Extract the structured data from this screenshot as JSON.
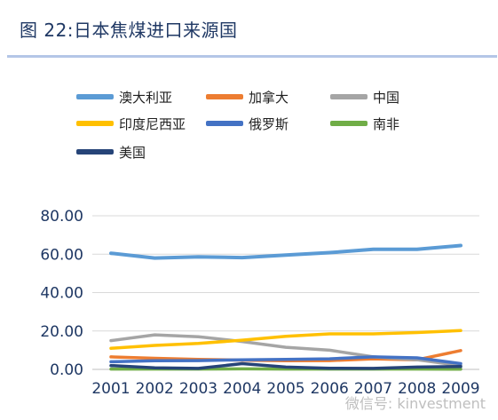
{
  "title": "图 22:日本焦煤进口来源国",
  "watermark": "微信号: kinvestment",
  "chart_data": {
    "type": "line",
    "x": [
      "2001",
      "2002",
      "2003",
      "2004",
      "2005",
      "2006",
      "2007",
      "2008",
      "2009"
    ],
    "ylim": [
      0,
      80
    ],
    "yticks": [
      "0.00",
      "20.00",
      "40.00",
      "60.00",
      "80.00"
    ],
    "grid": true,
    "legend_position": "top",
    "series": [
      {
        "name": "澳大利亚",
        "color": "#5b9bd5",
        "values": [
          60.5,
          58.0,
          58.6,
          58.2,
          59.5,
          60.8,
          62.5,
          62.5,
          64.5
        ]
      },
      {
        "name": "加拿大",
        "color": "#ed7d31",
        "values": [
          6.5,
          5.8,
          5.2,
          4.8,
          4.5,
          4.6,
          5.5,
          5.0,
          9.8
        ]
      },
      {
        "name": "中国",
        "color": "#a5a5a5",
        "values": [
          15.0,
          18.0,
          17.0,
          14.5,
          11.5,
          10.0,
          6.5,
          5.0,
          2.0
        ]
      },
      {
        "name": "印度尼西亚",
        "color": "#ffc000",
        "values": [
          11.0,
          12.5,
          13.5,
          15.2,
          17.2,
          18.5,
          18.5,
          19.2,
          20.2
        ]
      },
      {
        "name": "俄罗斯",
        "color": "#4472c4",
        "values": [
          4.0,
          4.5,
          4.6,
          5.0,
          5.2,
          5.5,
          6.5,
          6.0,
          3.0
        ]
      },
      {
        "name": "南非",
        "color": "#70ad47",
        "values": [
          0.2,
          0.2,
          0.2,
          0.3,
          0.2,
          0.2,
          0.2,
          0.2,
          0.1
        ]
      },
      {
        "name": "美国",
        "color": "#264478",
        "values": [
          2.0,
          0.8,
          0.5,
          3.0,
          1.2,
          0.6,
          0.5,
          1.2,
          1.5
        ]
      }
    ]
  }
}
